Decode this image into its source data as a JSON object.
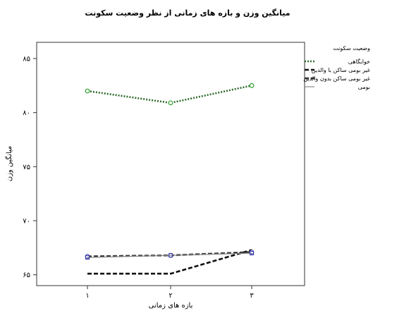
{
  "chart_data": {
    "type": "line",
    "title": "میانگین وزن و بازه های زمانی از نظر وضعیت سکونت",
    "xlabel": "بازه های زمانی",
    "ylabel": "میانگین وزن",
    "categories": [
      "۱",
      "۲",
      "۳"
    ],
    "yticks": [
      65,
      70,
      75,
      80,
      85
    ],
    "ytick_labels": [
      "۶۵",
      "۷۰",
      "۷۵",
      "۸۰",
      "۸۵"
    ],
    "ylim": [
      64,
      86.5
    ],
    "legend_title": "وضعیت سکونت",
    "legend_position": "right",
    "series": [
      {
        "name": "خوابگاهی",
        "values": [
          82.0,
          80.9,
          82.5
        ],
        "color": "#2f6b2f",
        "style": "dotted",
        "marker": "circle",
        "marker_color": "#2e9e2e"
      },
      {
        "name": "غیر بومی ساکن با والدین",
        "values": [
          65.1,
          65.1,
          67.3
        ],
        "color": "#111111",
        "style": "dashed",
        "marker": "none",
        "marker_color": "#111111"
      },
      {
        "name": "غیر بومی ساکن بدون والدین",
        "values": [
          66.7,
          66.8,
          67.1
        ],
        "color": "#333333",
        "style": "dashed",
        "marker": "circle",
        "marker_color": "#3a3aa8"
      },
      {
        "name": "بومی",
        "values": [
          66.6,
          66.8,
          67.0
        ],
        "color": "#888888",
        "style": "solid",
        "marker": "square",
        "marker_color": "#3a3aa8"
      }
    ]
  }
}
